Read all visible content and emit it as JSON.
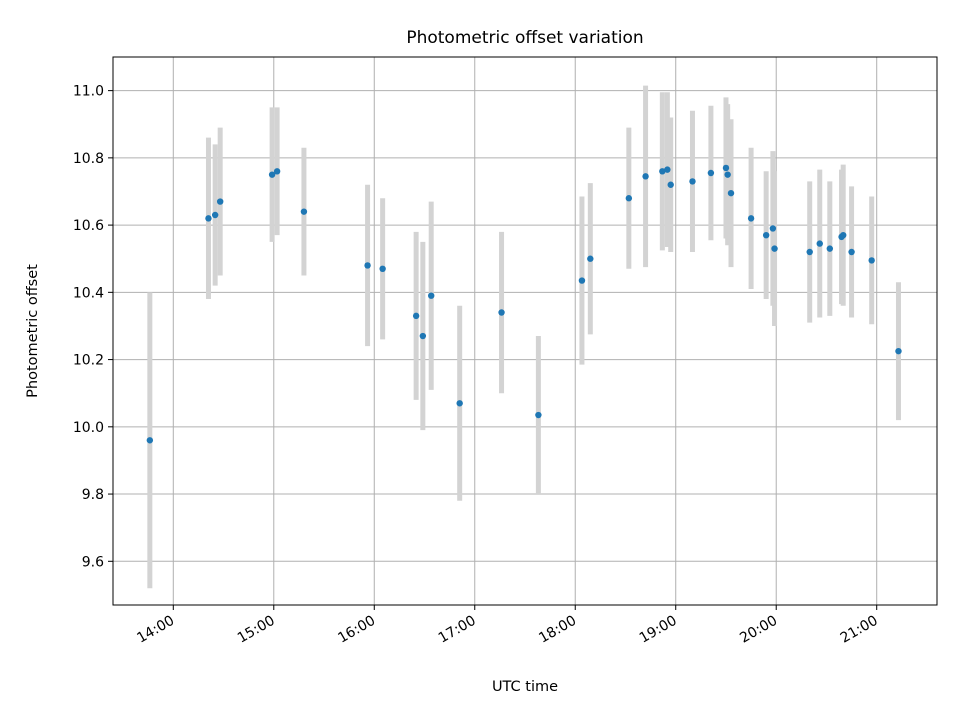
{
  "chart_data": {
    "type": "scatter",
    "title": "Photometric offset variation",
    "xlabel": "UTC time",
    "ylabel": "Photometric offset",
    "x_unit": "UTC time (HH:MM)",
    "xlim": [
      "13:24",
      "21:36"
    ],
    "ylim": [
      9.47,
      11.1
    ],
    "x_ticks": [
      "14:00",
      "15:00",
      "16:00",
      "17:00",
      "18:00",
      "19:00",
      "20:00",
      "21:00"
    ],
    "y_ticks": [
      "9.6",
      "9.8",
      "10.0",
      "10.2",
      "10.4",
      "10.6",
      "10.8",
      "11.0"
    ],
    "grid": true,
    "colors": {
      "point": "#1f77b4",
      "errorbar": "#d3d3d3",
      "grid": "#b0b0b0"
    },
    "series": [
      {
        "x": [
          "13:46",
          "14:21",
          "14:25",
          "14:28",
          "14:59",
          "15:02",
          "15:18",
          "15:56",
          "16:05",
          "16:25",
          "16:29",
          "16:34",
          "16:51",
          "17:16",
          "17:38",
          "18:04",
          "18:09",
          "18:32",
          "18:42",
          "18:52",
          "18:55",
          "18:57",
          "19:10",
          "19:21",
          "19:30",
          "19:31",
          "19:33",
          "19:45",
          "19:54",
          "19:58",
          "19:59",
          "20:20",
          "20:26",
          "20:32",
          "20:39",
          "20:40",
          "20:45",
          "20:57",
          "21:13"
        ],
        "y": [
          9.96,
          10.62,
          10.63,
          10.67,
          10.75,
          10.76,
          10.64,
          10.48,
          10.47,
          10.33,
          10.27,
          10.39,
          10.07,
          10.34,
          10.035,
          10.435,
          10.5,
          10.68,
          10.745,
          10.76,
          10.765,
          10.72,
          10.73,
          10.755,
          10.77,
          10.75,
          10.695,
          10.62,
          10.57,
          10.59,
          10.53,
          10.52,
          10.545,
          10.53,
          10.565,
          10.57,
          10.52,
          10.495,
          10.225
        ],
        "yerr": [
          0.44,
          0.24,
          0.21,
          0.22,
          0.2,
          0.19,
          0.19,
          0.24,
          0.21,
          0.25,
          0.28,
          0.28,
          0.29,
          0.24,
          0.235,
          0.25,
          0.225,
          0.21,
          0.27,
          0.235,
          0.23,
          0.2,
          0.21,
          0.2,
          0.21,
          0.21,
          0.22,
          0.21,
          0.19,
          0.23,
          0.23,
          0.21,
          0.22,
          0.2,
          0.2,
          0.21,
          0.195,
          0.19,
          0.205
        ]
      }
    ]
  }
}
